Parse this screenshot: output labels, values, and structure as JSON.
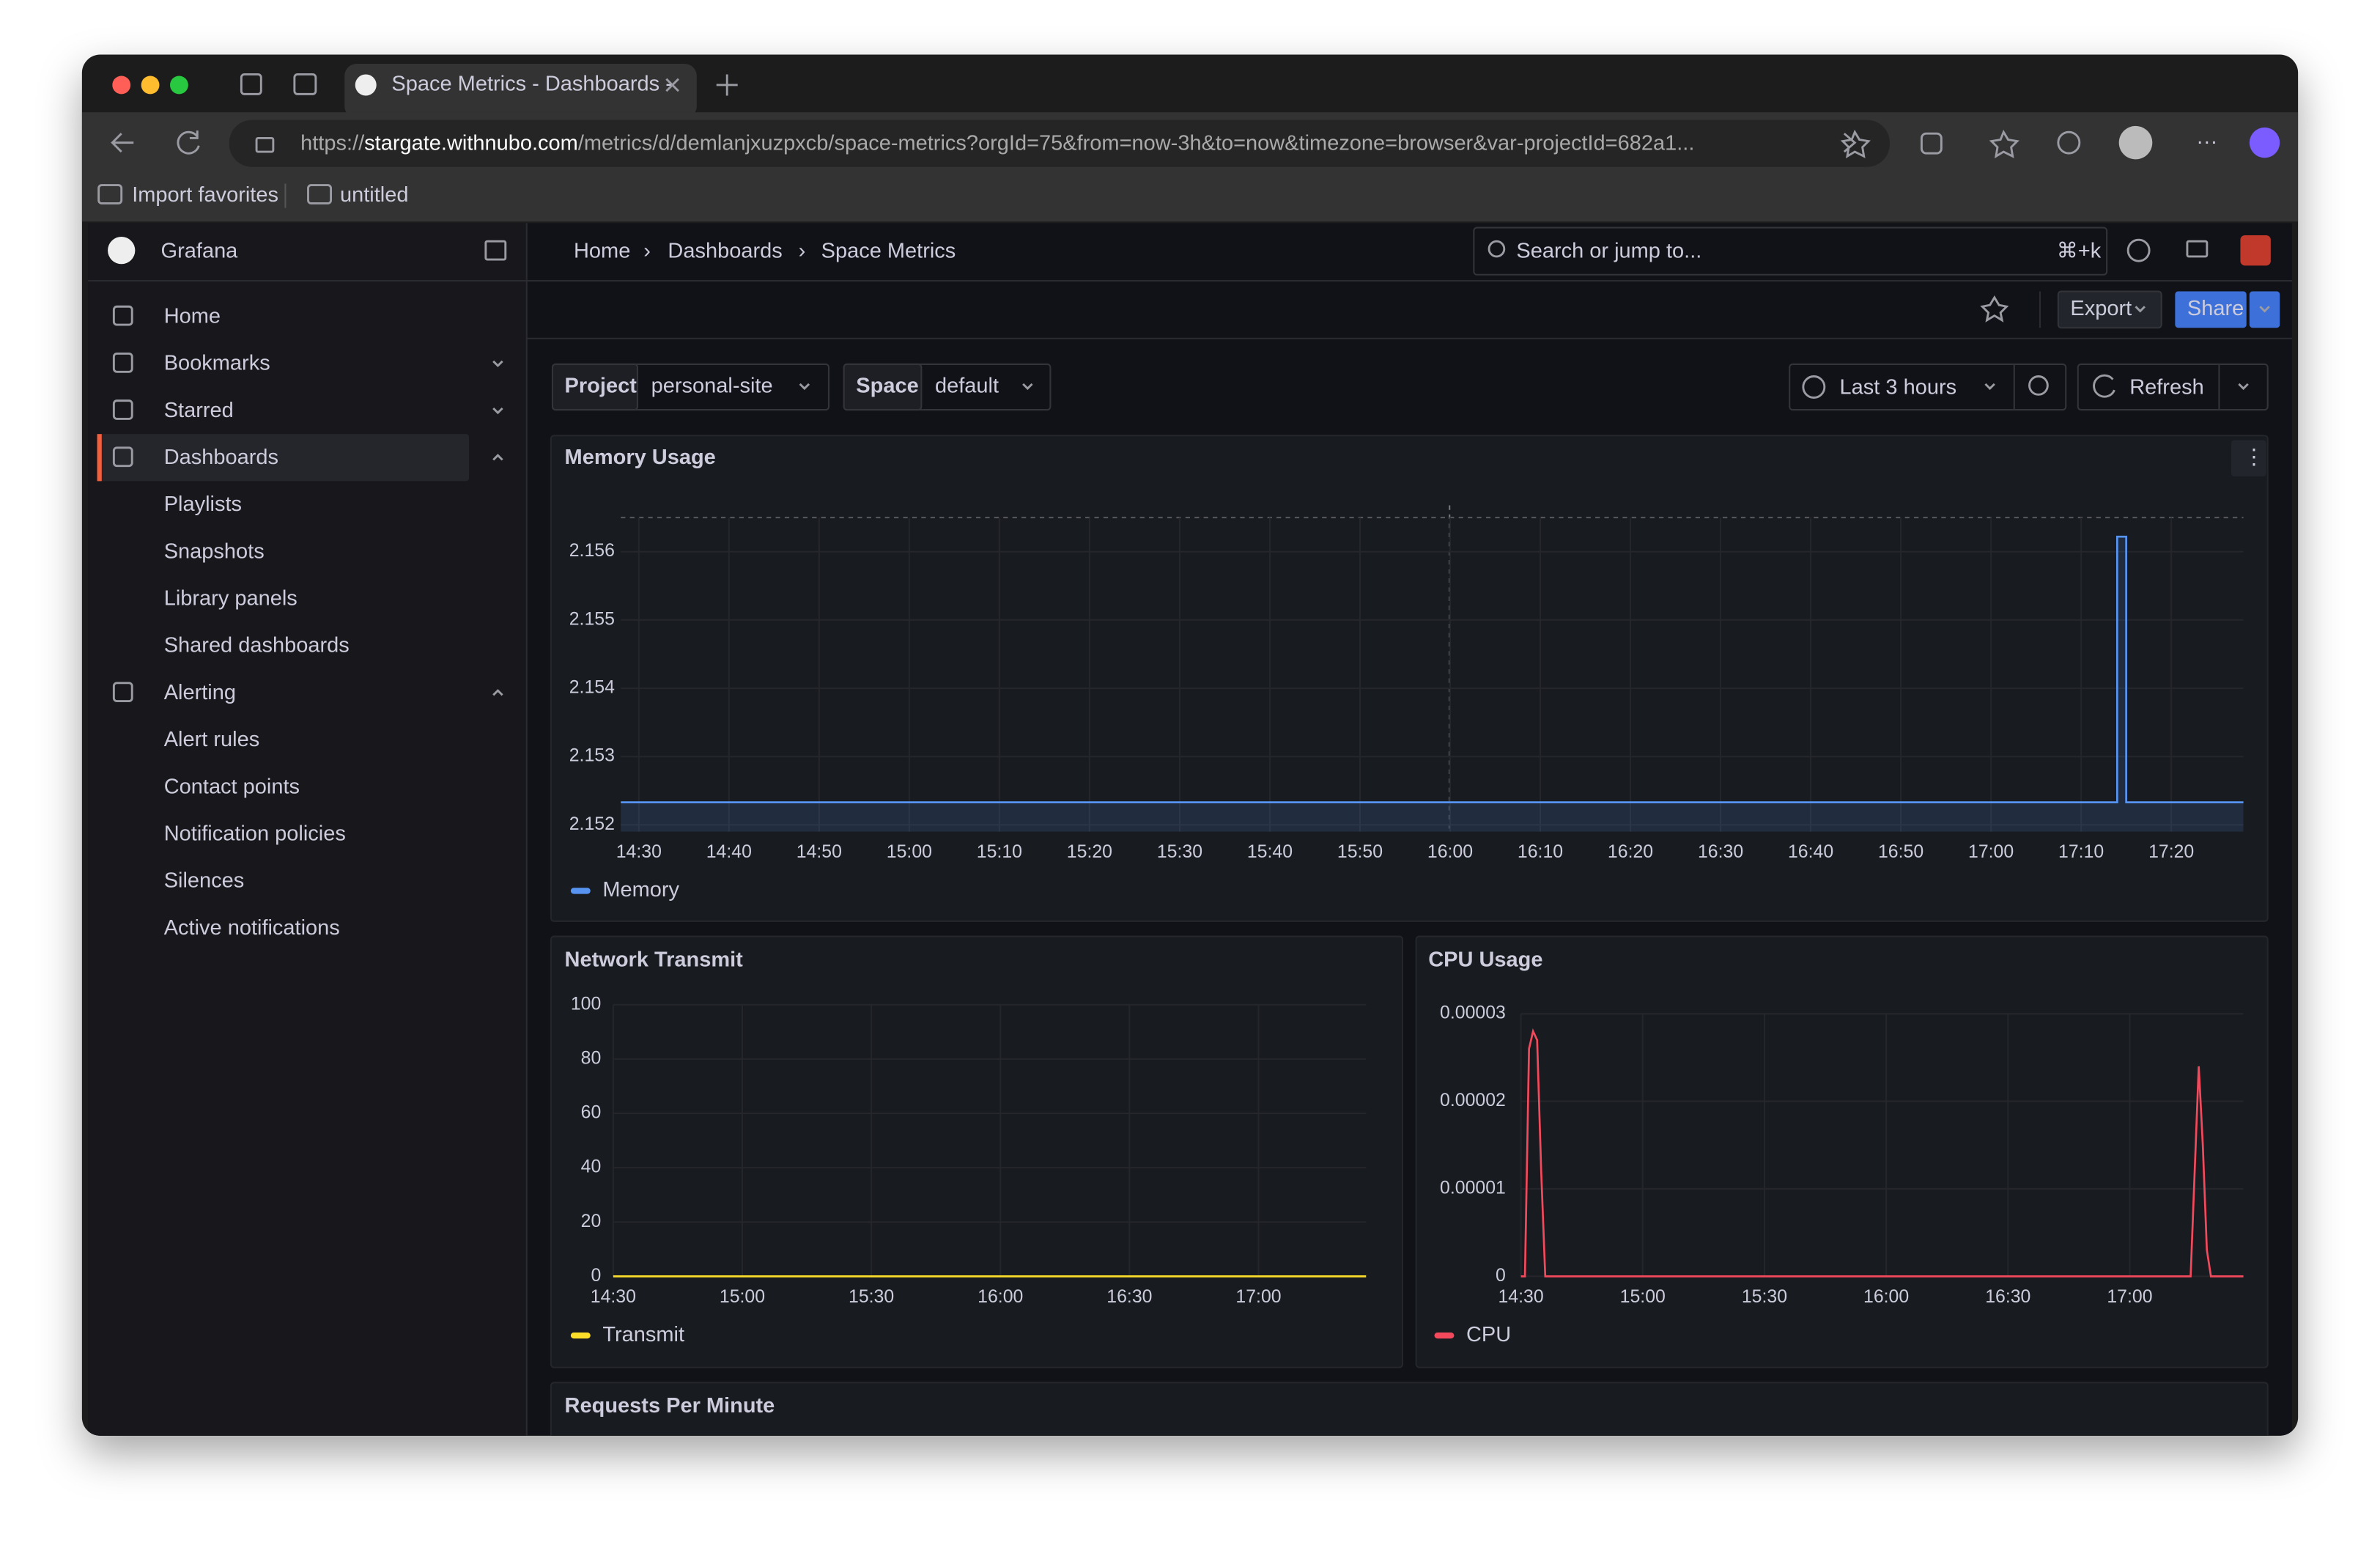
{
  "browser": {
    "tab_title": "Space Metrics - Dashboards -",
    "url_scheme": "https://",
    "url_host": "stargate.withnubo.com",
    "url_path": "/metrics/d/demlanjxuzpxcb/space-metrics?orgId=75&from=now-3h&to=now&timezone=browser&var-projectId=682a1...",
    "bookmarks": [
      "Import favorites",
      "untitled"
    ]
  },
  "app": {
    "name": "Grafana",
    "search_placeholder": "Search or jump to...",
    "shortcut": "⌘+k"
  },
  "nav": [
    {
      "label": "Home"
    },
    {
      "label": "Bookmarks",
      "expanded": false
    },
    {
      "label": "Starred",
      "expanded": false
    },
    {
      "label": "Dashboards",
      "expanded": true,
      "active": true,
      "children": [
        "Playlists",
        "Snapshots",
        "Library panels",
        "Shared dashboards"
      ]
    },
    {
      "label": "Alerting",
      "expanded": true,
      "children": [
        "Alert rules",
        "Contact points",
        "Notification policies",
        "Silences",
        "Active notifications"
      ]
    }
  ],
  "breadcrumbs": [
    "Home",
    "Dashboards",
    "Space Metrics"
  ],
  "toolbar": {
    "export": "Export",
    "share": "Share",
    "time_range": "Last 3 hours",
    "refresh": "Refresh"
  },
  "variables": [
    {
      "label": "Project",
      "value": "personal-site"
    },
    {
      "label": "Space",
      "value": "default"
    }
  ],
  "panels": [
    {
      "type": "line",
      "title": "Memory Usage",
      "fill": true,
      "grid": true,
      "xlim": [
        "14:28",
        "17:28"
      ],
      "xticks": [
        "14:30",
        "14:40",
        "14:50",
        "15:00",
        "15:10",
        "15:20",
        "15:30",
        "15:40",
        "15:50",
        "16:00",
        "16:10",
        "16:20",
        "16:30",
        "16:40",
        "16:50",
        "17:00",
        "17:10",
        "17:20"
      ],
      "ylim": [
        2.1519,
        2.1565
      ],
      "yticks": [
        2.152,
        2.153,
        2.154,
        2.155,
        2.156
      ],
      "series": [
        {
          "name": "Memory",
          "color": "#5794f2",
          "x": [
            "14:28",
            "17:14",
            "17:14",
            "17:15",
            "17:15",
            "17:28"
          ],
          "values": [
            2.15233,
            2.15233,
            2.15622,
            2.15622,
            2.15233,
            2.15233
          ]
        }
      ]
    },
    {
      "type": "line",
      "title": "Network Transmit",
      "grid": true,
      "xlim": [
        "14:30",
        "17:25"
      ],
      "xticks": [
        "14:30",
        "15:00",
        "15:30",
        "16:00",
        "16:30",
        "17:00"
      ],
      "ylim": [
        0,
        100
      ],
      "yticks": [
        0,
        20,
        40,
        60,
        80,
        100
      ],
      "series": [
        {
          "name": "Transmit",
          "color": "#fade2a",
          "x": [
            "14:30",
            "17:25"
          ],
          "values": [
            0,
            0
          ]
        }
      ]
    },
    {
      "type": "line",
      "title": "CPU Usage",
      "grid": true,
      "xlim": [
        "14:30",
        "17:28"
      ],
      "xticks": [
        "14:30",
        "15:00",
        "15:30",
        "16:00",
        "16:30",
        "17:00"
      ],
      "ylim": [
        0,
        3e-05
      ],
      "yticks": [
        0,
        1e-05,
        2e-05,
        3e-05
      ],
      "series": [
        {
          "name": "CPU",
          "color": "#f2495c",
          "x": [
            "14:30",
            "14:31",
            "14:32",
            "14:33",
            "14:34",
            "14:35",
            "14:36",
            "17:14",
            "17:15",
            "17:16",
            "17:17",
            "17:18",
            "17:19",
            "17:20",
            "17:28"
          ],
          "values": [
            0,
            0,
            2.6e-05,
            2.8e-05,
            2.7e-05,
            1.2e-05,
            0,
            0,
            0,
            1.2e-05,
            2.4e-05,
            1.5e-05,
            3e-06,
            0,
            0
          ]
        }
      ]
    },
    {
      "title": "Requests Per Minute"
    }
  ]
}
